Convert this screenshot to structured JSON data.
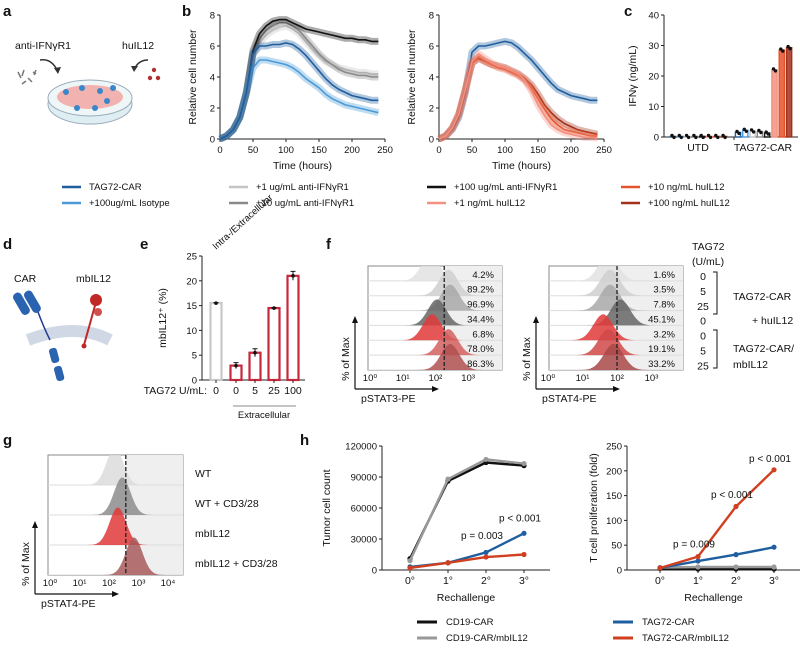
{
  "panel_labels": {
    "a": "a",
    "b": "b",
    "c": "c",
    "d": "d",
    "e": "e",
    "f": "f",
    "g": "g",
    "h": "h"
  },
  "panel_a": {
    "left_label": "anti-IFNγR1",
    "right_label": "huIL12"
  },
  "panel_d": {
    "car_label": "CAR",
    "mbil12_label": "mbIL12"
  },
  "legend_b": [
    {
      "label": "TAG72-CAR",
      "color": "#1f5fa0"
    },
    {
      "label": "+100ug/mL Isotype",
      "color": "#4a9ad8"
    },
    {
      "label": "+1 ug/mL anti-IFNγR1",
      "color": "#c4c4c4"
    },
    {
      "label": "+10 ug/mL anti-IFNγR1",
      "color": "#8a8a8a"
    },
    {
      "label": "+100 ug/mL anti-IFNγR1",
      "color": "#111111"
    },
    {
      "label": "+1 ng/mL huIL12",
      "color": "#f39080"
    },
    {
      "label": "+10 ng/mL huIL12",
      "color": "#e5532b"
    },
    {
      "label": "+100 ng/mL huIL12",
      "color": "#a3301a"
    }
  ],
  "legend_h": [
    {
      "label": "CD19-CAR",
      "color": "#111111"
    },
    {
      "label": "CD19-CAR/mbIL12",
      "color": "#999999"
    },
    {
      "label": "TAG72-CAR",
      "color": "#1f5fa0"
    },
    {
      "label": "TAG72-CAR/mbIL12",
      "color": "#d04020"
    }
  ],
  "chart_data": [
    {
      "id": "b_left",
      "type": "line",
      "xlabel": "Time (hours)",
      "ylabel": "Relative cell number",
      "xlim": [
        0,
        250
      ],
      "ylim": [
        0,
        8
      ],
      "xticks": [
        "0",
        "50",
        "100",
        "150",
        "200",
        "250"
      ],
      "yticks": [
        "0",
        "2",
        "4",
        "6",
        "8"
      ],
      "x": [
        0,
        10,
        20,
        30,
        40,
        50,
        60,
        70,
        80,
        90,
        100,
        110,
        120,
        130,
        140,
        150,
        160,
        170,
        180,
        190,
        200,
        210,
        220,
        230,
        240
      ],
      "series": [
        {
          "name": "+1 ug/mL anti-IFNγR1",
          "color": "#c4c4c4",
          "values": [
            0,
            0.2,
            0.6,
            1.4,
            3.0,
            5.4,
            6.2,
            6.7,
            7.0,
            7.2,
            7.3,
            7.1,
            6.8,
            6.3,
            5.8,
            5.4,
            5.0,
            4.8,
            4.6,
            4.5,
            4.4,
            4.3,
            4.3,
            4.2,
            4.2
          ]
        },
        {
          "name": "+10 ug/mL anti-IFNγR1",
          "color": "#8a8a8a",
          "values": [
            0,
            0.2,
            0.6,
            1.4,
            3.0,
            5.5,
            6.5,
            7.0,
            7.3,
            7.5,
            7.5,
            7.3,
            7.0,
            6.5,
            6.0,
            5.5,
            5.1,
            4.8,
            4.5,
            4.3,
            4.2,
            4.1,
            4.1,
            4.0,
            4.0
          ]
        },
        {
          "name": "+100 ug/mL anti-IFNγR1",
          "color": "#111111",
          "values": [
            0,
            0.2,
            0.6,
            1.4,
            3.0,
            5.7,
            6.8,
            7.3,
            7.6,
            7.7,
            7.7,
            7.5,
            7.3,
            7.1,
            7.0,
            6.9,
            6.8,
            6.7,
            6.6,
            6.5,
            6.5,
            6.4,
            6.4,
            6.3,
            6.3
          ]
        },
        {
          "name": "+100ug/mL Isotype",
          "color": "#4a9ad8",
          "values": [
            0,
            0.2,
            0.6,
            1.4,
            3.0,
            4.6,
            5.1,
            5.1,
            5.0,
            4.9,
            4.8,
            4.6,
            4.3,
            3.9,
            3.6,
            3.3,
            2.9,
            2.6,
            2.4,
            2.2,
            2.1,
            2.0,
            1.9,
            1.8,
            1.7
          ]
        },
        {
          "name": "TAG72-CAR",
          "color": "#1f5fa0",
          "values": [
            0,
            0.2,
            0.6,
            1.4,
            3.0,
            5.5,
            6.0,
            6.0,
            6.1,
            6.1,
            6.2,
            6.1,
            5.8,
            5.4,
            4.9,
            4.4,
            3.9,
            3.5,
            3.2,
            3.0,
            2.8,
            2.7,
            2.6,
            2.5,
            2.5
          ]
        }
      ]
    },
    {
      "id": "b_right",
      "type": "line",
      "xlabel": "Time (hours)",
      "ylabel": "Relative cell number",
      "xlim": [
        0,
        250
      ],
      "ylim": [
        0,
        8
      ],
      "xticks": [
        "0",
        "50",
        "100",
        "150",
        "200",
        "250"
      ],
      "yticks": [
        "0",
        "2",
        "4",
        "6",
        "8"
      ],
      "x": [
        0,
        10,
        20,
        30,
        40,
        50,
        60,
        70,
        80,
        90,
        100,
        110,
        120,
        130,
        140,
        150,
        160,
        170,
        180,
        190,
        200,
        210,
        220,
        230,
        240
      ],
      "series": [
        {
          "name": "TAG72-CAR",
          "color": "#1f5fa0",
          "values": [
            0,
            0.2,
            0.6,
            1.4,
            3.0,
            5.6,
            6.0,
            6.0,
            6.1,
            6.2,
            6.3,
            6.2,
            5.9,
            5.5,
            5.1,
            4.6,
            4.1,
            3.6,
            3.2,
            3.0,
            2.8,
            2.7,
            2.6,
            2.5,
            2.5
          ]
        },
        {
          "name": "+100 ng/mL huIL12",
          "color": "#a3301a",
          "values": [
            0,
            0.2,
            0.7,
            1.6,
            3.2,
            4.9,
            5.2,
            5.0,
            4.8,
            4.7,
            4.6,
            4.4,
            4.2,
            3.9,
            3.5,
            2.9,
            2.2,
            1.7,
            1.3,
            1.0,
            0.8,
            0.6,
            0.5,
            0.4,
            0.3
          ]
        },
        {
          "name": "+10 ng/mL huIL12",
          "color": "#e5532b",
          "values": [
            0,
            0.2,
            0.7,
            1.6,
            3.2,
            4.9,
            5.3,
            5.0,
            4.8,
            4.6,
            4.5,
            4.3,
            4.1,
            3.8,
            3.3,
            2.6,
            1.9,
            1.3,
            0.9,
            0.6,
            0.5,
            0.4,
            0.3,
            0.2,
            0.2
          ]
        },
        {
          "name": "+1 ng/mL huIL12",
          "color": "#f39080",
          "values": [
            0,
            0.2,
            0.7,
            1.6,
            3.2,
            5.0,
            5.5,
            5.2,
            4.9,
            4.7,
            4.6,
            4.4,
            4.2,
            3.8,
            3.1,
            2.2,
            1.5,
            0.9,
            0.6,
            0.4,
            0.3,
            0.2,
            0.1,
            0.1,
            0.05
          ]
        }
      ]
    },
    {
      "id": "c",
      "type": "bar",
      "ylabel": "IFNγ (ng/mL)",
      "ylim": [
        0,
        40
      ],
      "yticks": [
        "0",
        "10",
        "20",
        "30",
        "40"
      ],
      "categories": [
        "UTD",
        "TAG72-CAR"
      ],
      "groups": [
        {
          "values": [
            0.2,
            0.2,
            0.2,
            0.2,
            0.2,
            0.2,
            0.2,
            0.2
          ],
          "colors": [
            "#1f5fa0",
            "#4a9ad8",
            "#c4c4c4",
            "#8a8a8a",
            "#111111",
            "#f39080",
            "#e5532b",
            "#a3301a"
          ]
        },
        {
          "values": [
            1.5,
            2.2,
            2.0,
            1.8,
            1.3,
            22.0,
            28.5,
            29.3
          ],
          "colors": [
            "#1f5fa0",
            "#4a9ad8",
            "#c4c4c4",
            "#8a8a8a",
            "#111111",
            "#f39080",
            "#e5532b",
            "#a3301a"
          ]
        }
      ]
    },
    {
      "id": "e",
      "type": "bar",
      "ylabel": "mbIL12⁺ (%)",
      "ylim": [
        0,
        25
      ],
      "yticks": [
        "0",
        "5",
        "10",
        "15",
        "20",
        "25"
      ],
      "xaxis_title": "TAG72 U/mL:",
      "categories": [
        "0",
        "0",
        "5",
        "25",
        "100"
      ],
      "values": [
        15.5,
        2.9,
        5.5,
        14.5,
        21.0
      ],
      "errors": [
        0.1,
        0.6,
        0.8,
        0.1,
        0.9
      ],
      "colors": [
        "#c8c8c8",
        "#c8283c",
        "#c8283c",
        "#c8283c",
        "#c8283c"
      ],
      "annotation": "Intra-/Extracellular",
      "group_label": "Extracellular"
    },
    {
      "id": "f_left",
      "type": "histogram",
      "xlabel": "pSTAT3-PE",
      "ylabel": "% of Max",
      "xscale": "log",
      "xticks": [
        "10⁰",
        "10¹",
        "10²",
        "10³"
      ],
      "gate": 2.27,
      "rows": [
        {
          "peak": 1.85,
          "percent": "4.2%",
          "color": "#e2e2e2"
        },
        {
          "peak": 2.4,
          "percent": "89.2%",
          "color": "#cfcfcf"
        },
        {
          "peak": 2.45,
          "percent": "96.9%",
          "color": "#a8a8a8"
        },
        {
          "peak": 2.05,
          "percent": "34.4%",
          "color": "#666666"
        },
        {
          "peak": 1.9,
          "percent": "6.8%",
          "color": "#e03a3a"
        },
        {
          "peak": 2.4,
          "percent": "78.0%",
          "color": "#d46060"
        },
        {
          "peak": 2.45,
          "percent": "86.3%",
          "color": "#b05050"
        }
      ]
    },
    {
      "id": "f_right",
      "type": "histogram",
      "xlabel": "pSTAT4-PE",
      "ylabel": "% of Max",
      "xscale": "log",
      "xticks": [
        "10⁰",
        "10¹",
        "10²",
        "10³"
      ],
      "gate": 2.0,
      "rows": [
        {
          "peak": 1.75,
          "percent": "1.6%",
          "color": "#e2e2e2"
        },
        {
          "peak": 1.8,
          "percent": "3.5%",
          "color": "#cfcfcf"
        },
        {
          "peak": 1.8,
          "percent": "7.8%",
          "color": "#a8a8a8"
        },
        {
          "peak": 2.1,
          "percent": "45.1%",
          "color": "#666666"
        },
        {
          "peak": 1.6,
          "percent": "3.2%",
          "color": "#e03a3a"
        },
        {
          "peak": 1.75,
          "percent": "19.1%",
          "color": "#d04848"
        },
        {
          "peak": 1.9,
          "percent": "33.2%",
          "color": "#a84848"
        }
      ],
      "row_key": {
        "title": "TAG72",
        "unit": "(U/mL)",
        "values": [
          "0",
          "5",
          "25",
          "0",
          "0",
          "5",
          "25"
        ],
        "group1": "TAG72-CAR",
        "group1_extra": "+ huIL12",
        "group2_line1": "TAG72-CAR/",
        "group2_line2": "mbIL12"
      }
    },
    {
      "id": "g",
      "type": "histogram",
      "xlabel": "pSTAT4-PE",
      "ylabel": "% of Max",
      "xscale": "log",
      "xticks": [
        "10⁰",
        "10¹",
        "10²",
        "10³",
        "10⁴"
      ],
      "gate": 2.57,
      "rows": [
        {
          "peak": 2.2,
          "label": "WT",
          "color": "#dcdcdc"
        },
        {
          "peak": 2.45,
          "label": "WT + CD3/28",
          "color": "#8c8c8c"
        },
        {
          "peak": 2.3,
          "label": "mbIL12",
          "color": "#e03a3a"
        },
        {
          "peak": 2.85,
          "label": "mbIL12 + CD3/28",
          "color": "#a85a5a"
        }
      ]
    },
    {
      "id": "h_left",
      "type": "line",
      "xlabel": "Rechallenge",
      "ylabel": "Tumor cell count",
      "ylim": [
        0,
        120000
      ],
      "yticks": [
        "0",
        "30000",
        "60000",
        "90000",
        "120000"
      ],
      "categories": [
        "0°",
        "1°",
        "2°",
        "3°"
      ],
      "series": [
        {
          "name": "CD19-CAR",
          "color": "#111111",
          "values": [
            11000,
            86000,
            104000,
            101000
          ]
        },
        {
          "name": "CD19-CAR/mbIL12",
          "color": "#999999",
          "values": [
            9000,
            88000,
            107000,
            103000
          ]
        },
        {
          "name": "TAG72-CAR",
          "color": "#1f5fa0",
          "values": [
            3000,
            7000,
            17000,
            35500
          ]
        },
        {
          "name": "TAG72-CAR/mbIL12",
          "color": "#d04020",
          "values": [
            2000,
            7000,
            12500,
            15000
          ]
        }
      ],
      "annotations": [
        {
          "category": "2°",
          "value": 30000,
          "text": "p = 0.003"
        },
        {
          "category": "3°",
          "value": 47000,
          "text": "p < 0.001"
        }
      ]
    },
    {
      "id": "h_right",
      "type": "line",
      "xlabel": "Rechallenge",
      "ylabel": "T cell proliferation (fold)",
      "ylim": [
        0,
        250
      ],
      "yticks": [
        "0",
        "50",
        "100",
        "150",
        "200",
        "250"
      ],
      "categories": [
        "0°",
        "1°",
        "2°",
        "3°"
      ],
      "series": [
        {
          "name": "CD19-CAR",
          "color": "#111111",
          "values": [
            3,
            2,
            2,
            2
          ]
        },
        {
          "name": "CD19-CAR/mbIL12",
          "color": "#999999",
          "values": [
            5,
            6,
            6,
            6
          ]
        },
        {
          "name": "TAG72-CAR",
          "color": "#1f5fa0",
          "values": [
            4,
            18,
            31,
            46
          ]
        },
        {
          "name": "TAG72-CAR/mbIL12",
          "color": "#d04020",
          "values": [
            4,
            27,
            128,
            202
          ]
        }
      ],
      "annotations": [
        {
          "category": "1°",
          "value": 45,
          "text": "p = 0.009"
        },
        {
          "category": "2°",
          "value": 145,
          "text": "p < 0.001"
        },
        {
          "category": "3°",
          "value": 218,
          "text": "p < 0.001"
        }
      ]
    }
  ]
}
